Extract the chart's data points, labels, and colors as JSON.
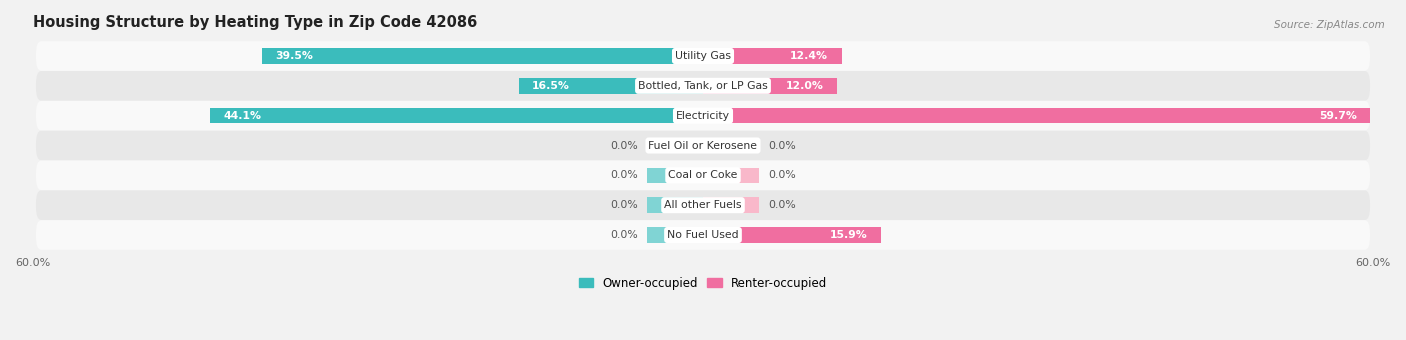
{
  "title": "Housing Structure by Heating Type in Zip Code 42086",
  "source": "Source: ZipAtlas.com",
  "categories": [
    "Utility Gas",
    "Bottled, Tank, or LP Gas",
    "Electricity",
    "Fuel Oil or Kerosene",
    "Coal or Coke",
    "All other Fuels",
    "No Fuel Used"
  ],
  "owner_values": [
    39.5,
    16.5,
    44.1,
    0.0,
    0.0,
    0.0,
    0.0
  ],
  "renter_values": [
    12.4,
    12.0,
    59.7,
    0.0,
    0.0,
    0.0,
    15.9
  ],
  "owner_color": "#3BBCBC",
  "renter_color": "#F06EA0",
  "owner_color_light": "#80D4D4",
  "renter_color_light": "#F9B8CA",
  "axis_max": 60.0,
  "bar_height": 0.52,
  "background_color": "#f2f2f2",
  "row_bg_even": "#f9f9f9",
  "row_bg_odd": "#e8e8e8",
  "stub_size": 5.0,
  "label_threshold": 8.0
}
